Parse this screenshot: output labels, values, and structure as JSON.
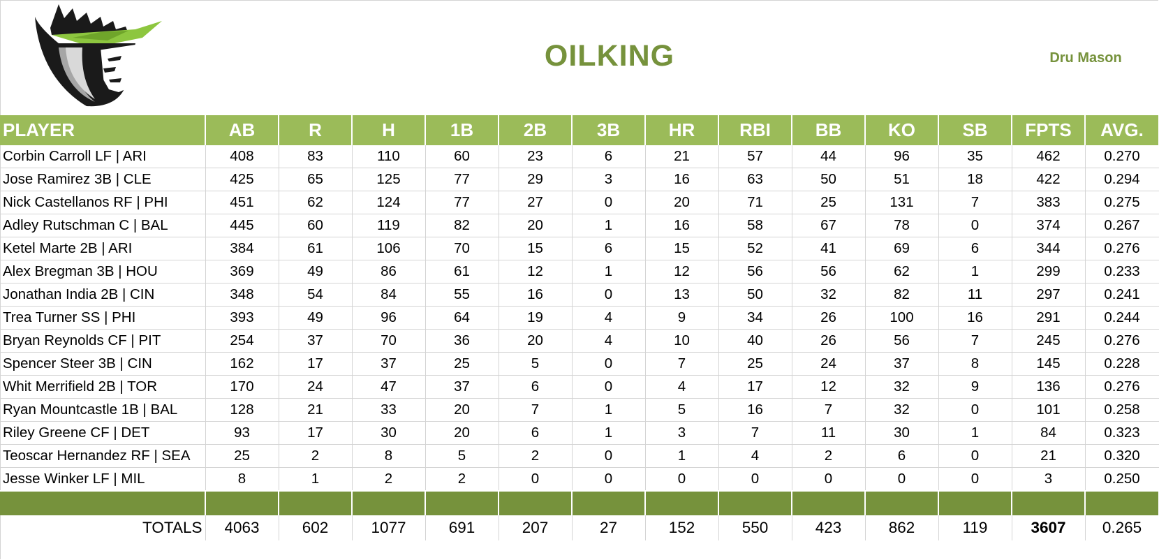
{
  "team": {
    "name": "OILKING",
    "owner": "Dru Mason",
    "accent_color": "#9bbb59",
    "dark_accent_color": "#76923c",
    "logo_icon": "crowned-king-shield-logo"
  },
  "table": {
    "columns": [
      "PLAYER",
      "AB",
      "R",
      "H",
      "1B",
      "2B",
      "3B",
      "HR",
      "RBI",
      "BB",
      "KO",
      "SB",
      "FPTS",
      "AVG."
    ],
    "rows": [
      {
        "player": "Corbin Carroll LF | ARI",
        "stats": [
          "408",
          "83",
          "110",
          "60",
          "23",
          "6",
          "21",
          "57",
          "44",
          "96",
          "35",
          "462",
          "0.270"
        ]
      },
      {
        "player": "Jose Ramirez 3B | CLE",
        "stats": [
          "425",
          "65",
          "125",
          "77",
          "29",
          "3",
          "16",
          "63",
          "50",
          "51",
          "18",
          "422",
          "0.294"
        ]
      },
      {
        "player": "Nick Castellanos RF | PHI",
        "stats": [
          "451",
          "62",
          "124",
          "77",
          "27",
          "0",
          "20",
          "71",
          "25",
          "131",
          "7",
          "383",
          "0.275"
        ]
      },
      {
        "player": "Adley Rutschman C | BAL",
        "stats": [
          "445",
          "60",
          "119",
          "82",
          "20",
          "1",
          "16",
          "58",
          "67",
          "78",
          "0",
          "374",
          "0.267"
        ]
      },
      {
        "player": "Ketel Marte 2B | ARI",
        "stats": [
          "384",
          "61",
          "106",
          "70",
          "15",
          "6",
          "15",
          "52",
          "41",
          "69",
          "6",
          "344",
          "0.276"
        ]
      },
      {
        "player": "Alex Bregman 3B | HOU",
        "stats": [
          "369",
          "49",
          "86",
          "61",
          "12",
          "1",
          "12",
          "56",
          "56",
          "62",
          "1",
          "299",
          "0.233"
        ]
      },
      {
        "player": "Jonathan India 2B | CIN",
        "stats": [
          "348",
          "54",
          "84",
          "55",
          "16",
          "0",
          "13",
          "50",
          "32",
          "82",
          "11",
          "297",
          "0.241"
        ]
      },
      {
        "player": "Trea Turner SS | PHI",
        "stats": [
          "393",
          "49",
          "96",
          "64",
          "19",
          "4",
          "9",
          "34",
          "26",
          "100",
          "16",
          "291",
          "0.244"
        ]
      },
      {
        "player": "Bryan Reynolds CF | PIT",
        "stats": [
          "254",
          "37",
          "70",
          "36",
          "20",
          "4",
          "10",
          "40",
          "26",
          "56",
          "7",
          "245",
          "0.276"
        ]
      },
      {
        "player": "Spencer Steer 3B | CIN",
        "stats": [
          "162",
          "17",
          "37",
          "25",
          "5",
          "0",
          "7",
          "25",
          "24",
          "37",
          "8",
          "145",
          "0.228"
        ]
      },
      {
        "player": "Whit Merrifield 2B | TOR",
        "stats": [
          "170",
          "24",
          "47",
          "37",
          "6",
          "0",
          "4",
          "17",
          "12",
          "32",
          "9",
          "136",
          "0.276"
        ]
      },
      {
        "player": "Ryan Mountcastle 1B | BAL",
        "stats": [
          "128",
          "21",
          "33",
          "20",
          "7",
          "1",
          "5",
          "16",
          "7",
          "32",
          "0",
          "101",
          "0.258"
        ]
      },
      {
        "player": "Riley Greene CF | DET",
        "stats": [
          "93",
          "17",
          "30",
          "20",
          "6",
          "1",
          "3",
          "7",
          "11",
          "30",
          "1",
          "84",
          "0.323"
        ]
      },
      {
        "player": "Teoscar Hernandez RF | SEA",
        "stats": [
          "25",
          "2",
          "8",
          "5",
          "2",
          "0",
          "1",
          "4",
          "2",
          "6",
          "0",
          "21",
          "0.320"
        ]
      },
      {
        "player": "Jesse Winker LF | MIL",
        "stats": [
          "8",
          "1",
          "2",
          "2",
          "0",
          "0",
          "0",
          "0",
          "0",
          "0",
          "0",
          "3",
          "0.250"
        ]
      }
    ],
    "totals": {
      "label": "TOTALS",
      "values": [
        "4063",
        "602",
        "1077",
        "691",
        "207",
        "27",
        "152",
        "550",
        "423",
        "862",
        "119",
        "3607",
        "0.265"
      ]
    }
  }
}
